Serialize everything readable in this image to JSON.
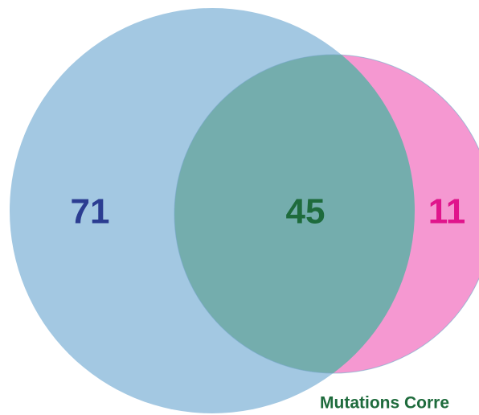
{
  "chart_data": {
    "type": "venn",
    "values": [
      71,
      45,
      11
    ],
    "value_colors": [
      "#2b3d91",
      "#1e6b3c",
      "#e0158c"
    ],
    "circle_colors": [
      "#a3c8e2",
      "#f598d1"
    ],
    "overlap_color": "#74adad",
    "label": "Mutations Corre",
    "label_color": "#1e6b3c"
  }
}
